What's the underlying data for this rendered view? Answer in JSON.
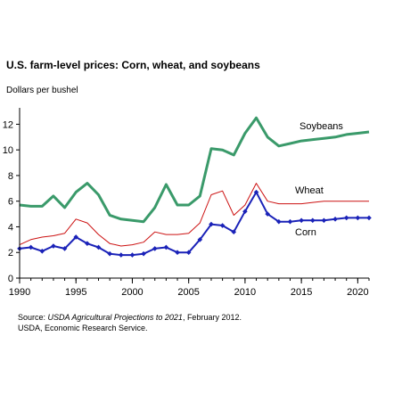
{
  "chart_data": {
    "type": "line",
    "title": "U.S. farm-level prices: Corn, wheat, and soybeans",
    "ylabel": "Dollars per bushel",
    "xlabel": "",
    "xlim": [
      1990,
      2021
    ],
    "ylim": [
      0,
      13
    ],
    "xticks": [
      1990,
      1995,
      2000,
      2005,
      2010,
      2015,
      2020
    ],
    "yticks": [
      0,
      2,
      4,
      6,
      8,
      10,
      12
    ],
    "grid": false,
    "legend": "labels placed directly on lines",
    "x": [
      1990,
      1991,
      1992,
      1993,
      1994,
      1995,
      1996,
      1997,
      1998,
      1999,
      2000,
      2001,
      2002,
      2003,
      2004,
      2005,
      2006,
      2007,
      2008,
      2009,
      2010,
      2011,
      2012,
      2013,
      2014,
      2015,
      2016,
      2017,
      2018,
      2019,
      2020,
      2021
    ],
    "series": [
      {
        "name": "Soybeans",
        "color": "#3a9a6a",
        "values": [
          5.7,
          5.6,
          5.6,
          6.4,
          5.5,
          6.7,
          7.4,
          6.5,
          4.9,
          4.6,
          4.5,
          4.4,
          5.5,
          7.3,
          5.7,
          5.7,
          6.4,
          10.1,
          10.0,
          9.6,
          11.3,
          12.5,
          11.0,
          10.3,
          10.5,
          10.7,
          10.8,
          10.9,
          11.0,
          11.2,
          11.3,
          11.4
        ]
      },
      {
        "name": "Wheat",
        "color": "#cc1111",
        "values": [
          2.6,
          3.0,
          3.2,
          3.3,
          3.5,
          4.6,
          4.3,
          3.4,
          2.7,
          2.5,
          2.6,
          2.8,
          3.6,
          3.4,
          3.4,
          3.5,
          4.3,
          6.5,
          6.8,
          4.9,
          5.7,
          7.4,
          6.0,
          5.8,
          5.8,
          5.8,
          5.9,
          6.0,
          6.0,
          6.0,
          6.0,
          6.0
        ]
      },
      {
        "name": "Corn",
        "color": "#1a22b8",
        "values": [
          2.3,
          2.4,
          2.1,
          2.5,
          2.3,
          3.2,
          2.7,
          2.4,
          1.9,
          1.8,
          1.8,
          1.9,
          2.3,
          2.4,
          2.0,
          2.0,
          3.0,
          4.2,
          4.1,
          3.6,
          5.2,
          6.7,
          5.0,
          4.4,
          4.4,
          4.5,
          4.5,
          4.5,
          4.6,
          4.7,
          4.7,
          4.7
        ]
      }
    ]
  },
  "source": {
    "prefix": "Source: ",
    "title": "USDA Agricultural Projections to 2021",
    "suffix": ", February 2012.",
    "line2": "USDA, Economic Research Service."
  }
}
